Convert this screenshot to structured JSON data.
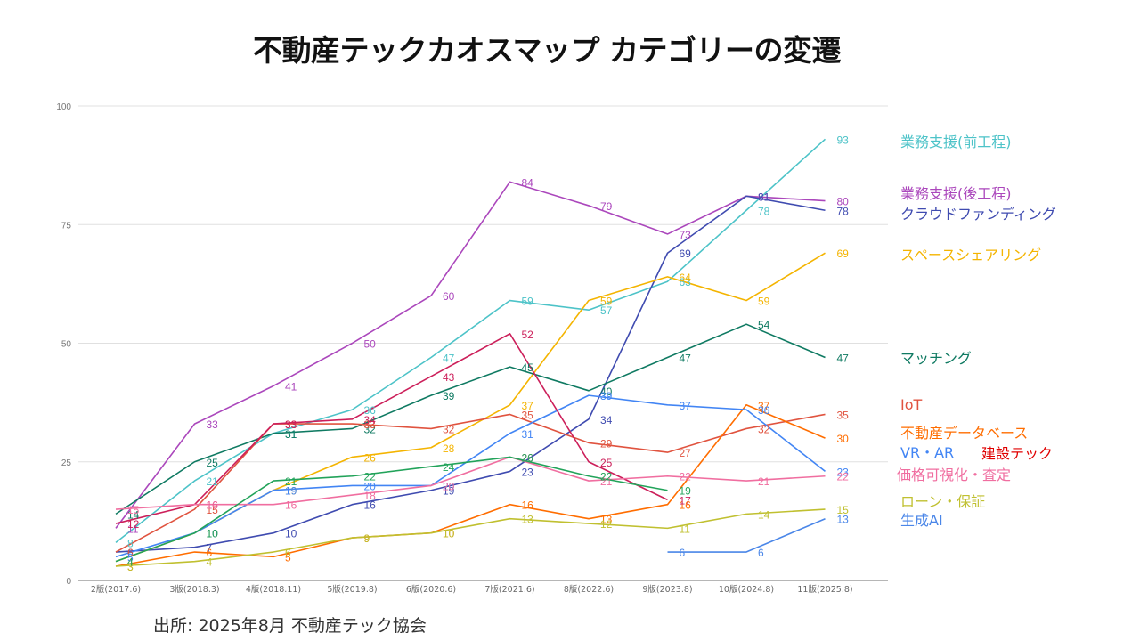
{
  "title": "不動産テックカオスマップ カテゴリーの変遷",
  "source": "出所: 2025年8月 不動産テック協会",
  "chart_data": {
    "type": "line",
    "title": "不動産テックカオスマップ カテゴリーの変遷",
    "xlabel": "",
    "ylabel": "",
    "ylim": [
      0,
      100
    ],
    "yticks": [
      0,
      25,
      50,
      75,
      100
    ],
    "grid": true,
    "legend_position": "right",
    "categories": [
      "2版(2017.6)",
      "3版(2018.3)",
      "4版(2018.11)",
      "5版(2019.8)",
      "6版(2020.6)",
      "7版(2021.6)",
      "8版(2022.6)",
      "9版(2023.8)",
      "10版(2024.8)",
      "11版(2025.8)"
    ],
    "series": [
      {
        "name": "業務支援(前工程)",
        "color": "#4dc3c8",
        "values": [
          8,
          21,
          31,
          36,
          47,
          59,
          57,
          63,
          78,
          93
        ]
      },
      {
        "name": "業務支援(後工程)",
        "color": "#ab47bc",
        "values": [
          11,
          33,
          41,
          50,
          60,
          84,
          79,
          73,
          81,
          80
        ]
      },
      {
        "name": "クラウドファンディング",
        "color": "#3f4bb0",
        "values": [
          6,
          7,
          10,
          16,
          19,
          23,
          34,
          69,
          81,
          78
        ]
      },
      {
        "name": "スペースシェアリング",
        "color": "#f4b400",
        "values": [
          4,
          10,
          19,
          26,
          28,
          37,
          59,
          64,
          59,
          69
        ]
      },
      {
        "name": "マッチング",
        "color": "#0f7a62",
        "values": [
          14,
          25,
          31,
          32,
          39,
          45,
          40,
          47,
          54,
          47
        ]
      },
      {
        "name": "IoT",
        "color": "#e0533f",
        "values": [
          6,
          15,
          33,
          33,
          32,
          35,
          29,
          27,
          32,
          35
        ]
      },
      {
        "name": "不動産データベース",
        "color": "#ff6d00",
        "values": [
          3,
          6,
          5,
          9,
          10,
          16,
          13,
          16,
          37,
          30
        ]
      },
      {
        "name": "VR・AR",
        "color": "#4285f4",
        "values": [
          5,
          10,
          19,
          20,
          20,
          31,
          39,
          37,
          36,
          23
        ]
      },
      {
        "name": "建設テック",
        "color": "#cc1f5a",
        "values": [
          12,
          16,
          33,
          34,
          43,
          52,
          25,
          17,
          null,
          null
        ]
      },
      {
        "name": "価格可視化・査定",
        "color": "#f06ea0",
        "values": [
          15,
          16,
          16,
          18,
          20,
          26,
          21,
          22,
          21,
          22
        ]
      },
      {
        "name": "ローン・保証",
        "color": "#c0c030",
        "values": [
          3,
          4,
          6,
          9,
          10,
          13,
          12,
          11,
          14,
          15
        ]
      },
      {
        "name": "生成AI",
        "color": "#4a86e8",
        "values": [
          null,
          null,
          null,
          null,
          null,
          null,
          null,
          6,
          6,
          13
        ]
      },
      {
        "name": "",
        "color": "#22a35a",
        "values": [
          4,
          10,
          21,
          22,
          24,
          26,
          22,
          19,
          null,
          null
        ]
      }
    ]
  },
  "legend": [
    {
      "label": "業務支援(前工程)",
      "color": "#4dc3c8"
    },
    {
      "label": "業務支援(後工程)",
      "color": "#ab47bc"
    },
    {
      "label": "クラウドファンディング",
      "color": "#3f4bb0"
    },
    {
      "label": "スペースシェアリング",
      "color": "#f4b400"
    },
    {
      "label": "マッチング",
      "color": "#0f7a62"
    },
    {
      "label": "IoT",
      "color": "#e0533f"
    },
    {
      "label": "不動産データベース",
      "color": "#ff6d00"
    },
    {
      "label": "VR・AR",
      "color": "#4285f4"
    },
    {
      "label": "建設テック",
      "color": "#e00000"
    },
    {
      "label": "価格可視化・査定",
      "color": "#f06ea0"
    },
    {
      "label": "ローン・保証",
      "color": "#c0c030"
    },
    {
      "label": "生成AI",
      "color": "#4a86e8"
    }
  ]
}
